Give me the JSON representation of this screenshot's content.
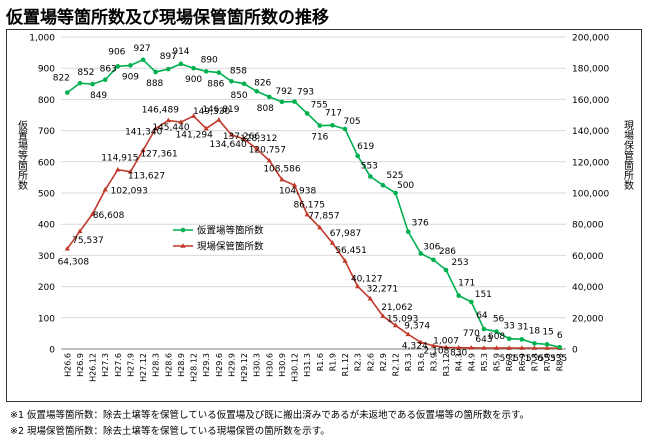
{
  "title": "仮置場等箇所数及び現場保管箇所数の推移",
  "notes": [
    "※1  仮置場等箇所数：除去土壌等を保管している仮置場及び既に搬出済みであるが未返地である仮置場等の箇所数を示す。",
    "※2  現場保管箇所数：除去土壌等を保管している現場保管の箇所数を示す。"
  ],
  "colors": {
    "series1": "#00b050",
    "series2": "#c0392b",
    "grid": "#d9d9d9",
    "axis": "#000000"
  },
  "chart_data": {
    "type": "line",
    "categories": [
      "H26.6",
      "H26.9",
      "H26.12",
      "H27.3",
      "H27.6",
      "H27.9",
      "H27.12",
      "H28.3",
      "H28.6",
      "H28.9",
      "H28.12",
      "H29.3",
      "H29.6",
      "H29.9",
      "H29.12",
      "H30.3",
      "H30.6",
      "H30.9",
      "H30.12",
      "H31.3",
      "R1.6",
      "R1.9",
      "R1.12",
      "R2.3",
      "R2.6",
      "R2.9",
      "R2.12",
      "R3.3",
      "R3.6",
      "R3.9",
      "R3.12",
      "R4.3",
      "R4.9",
      "R5.3",
      "R5.9",
      "R6.3",
      "R6.9",
      "R7.3",
      "R7.9",
      "R8.3"
    ],
    "ylabel": "仮置場等箇所数",
    "y2label": "現場保管箇所数",
    "ylim": [
      0,
      1000
    ],
    "y2lim": [
      0,
      200000
    ],
    "yticks": [
      "0",
      "100",
      "200",
      "300",
      "400",
      "500",
      "600",
      "700",
      "800",
      "900",
      "1,000"
    ],
    "y2ticks": [
      "0",
      "20,000",
      "40,000",
      "60,000",
      "80,000",
      "100,000",
      "120,000",
      "140,000",
      "160,000",
      "180,000",
      "200,000"
    ],
    "legend_position": "center",
    "grid": true,
    "series": [
      {
        "name": "仮置場等箇所数",
        "axis": "left",
        "values": [
          822,
          852,
          849,
          863,
          906,
          909,
          927,
          888,
          897,
          914,
          900,
          890,
          886,
          858,
          850,
          826,
          808,
          792,
          793,
          755,
          716,
          717,
          705,
          619,
          553,
          525,
          500,
          376,
          306,
          286,
          253,
          171,
          151,
          64,
          56,
          33,
          31,
          18,
          15,
          6
        ],
        "labels": [
          "822",
          "852",
          "849",
          "863",
          "906",
          "909",
          "927",
          "888",
          "897",
          "914",
          "900",
          "890",
          "886",
          "858",
          "850",
          "826",
          "808",
          "792",
          "793",
          "755",
          "716",
          "717",
          "705",
          "619",
          "553",
          "525",
          "500",
          "376",
          "306",
          "286",
          "253",
          "171",
          "151",
          "64",
          "56",
          "33",
          "31",
          "18",
          "15",
          "6"
        ]
      },
      {
        "name": "現場保管箇所数",
        "axis": "right",
        "values": [
          64308,
          75537,
          86608,
          102093,
          114915,
          113627,
          127361,
          141340,
          146489,
          145440,
          149330,
          141294,
          146819,
          137266,
          134640,
          128312,
          120757,
          108586,
          104938,
          86175,
          77857,
          67987,
          56451,
          40127,
          32271,
          21062,
          15093,
          9374,
          4324,
          2108,
          1007,
          830,
          770,
          643,
          608,
          591,
          571,
          556,
          553,
          535
        ],
        "labels": [
          "64,308",
          "75,537",
          "86,608",
          "102,093",
          "114,915",
          "113,627",
          "127,361",
          "141,340",
          "146,489",
          "145,440",
          "149,330",
          "141,294",
          "146,819",
          "137,266",
          "134,640",
          "128,312",
          "120,757",
          "108,586",
          "104,938",
          "86,175",
          "77,857",
          "67,987",
          "56,451",
          "40,127",
          "32,271",
          "21,062",
          "15,093",
          "9,374",
          "4,324",
          "2,108",
          "1,007",
          "830",
          "770",
          "643",
          "608",
          "591",
          "571",
          "556",
          "553",
          "535"
        ]
      }
    ]
  }
}
